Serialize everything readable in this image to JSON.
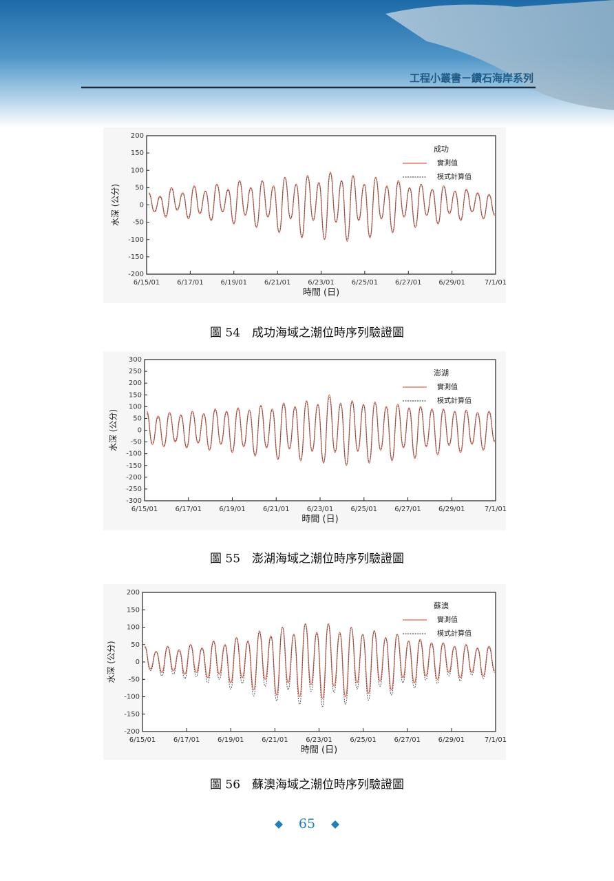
{
  "header": {
    "title": "工程小叢書－鑽石海岸系列"
  },
  "chart_data": [
    {
      "type": "line",
      "annotation": "成功",
      "x_label": "時間 (日)",
      "y_label": "水深 (公分)",
      "x": [
        0.1,
        0.36,
        0.62,
        0.88,
        1.14,
        1.4,
        1.66,
        1.92,
        2.18,
        2.44,
        2.7,
        2.96,
        3.22,
        3.48,
        3.74,
        4.0,
        4.26,
        4.52,
        4.78,
        5.04,
        5.3,
        5.56,
        5.82,
        6.08,
        6.34,
        6.6,
        6.86,
        7.12,
        7.38,
        7.64,
        7.9,
        8.16,
        8.42,
        8.68,
        8.94,
        9.2,
        9.46,
        9.72,
        9.98,
        10.24,
        10.5,
        10.76,
        11.02,
        11.28,
        11.54,
        11.8,
        12.06,
        12.32,
        12.58,
        12.84,
        13.1,
        13.36,
        13.62,
        13.88,
        14.14,
        14.4,
        14.66,
        14.92,
        15.18,
        15.44,
        15.7,
        15.96
      ],
      "series": [
        {
          "name": "實測值",
          "color": "#e8604c",
          "dash": false,
          "values": [
            35,
            -20,
            25,
            -35,
            50,
            -15,
            35,
            -40,
            55,
            -25,
            40,
            -45,
            60,
            -20,
            45,
            -55,
            70,
            -30,
            50,
            -65,
            70,
            -35,
            55,
            -80,
            80,
            -40,
            60,
            -95,
            85,
            -45,
            65,
            -100,
            95,
            -50,
            70,
            -105,
            85,
            -45,
            60,
            -95,
            80,
            -40,
            55,
            -80,
            70,
            -35,
            50,
            -65,
            60,
            -30,
            45,
            -55,
            55,
            -25,
            40,
            -45,
            45,
            -20,
            35,
            -40,
            30,
            -30
          ]
        },
        {
          "name": "模式計算值",
          "color": "#555555",
          "dash": true,
          "values": [
            32,
            -18,
            22,
            -30,
            46,
            -12,
            32,
            -36,
            52,
            -22,
            38,
            -42,
            58,
            -18,
            42,
            -52,
            68,
            -28,
            48,
            -62,
            68,
            -32,
            52,
            -78,
            78,
            -38,
            58,
            -92,
            82,
            -42,
            62,
            -98,
            92,
            -48,
            68,
            -100,
            82,
            -42,
            58,
            -92,
            78,
            -38,
            52,
            -76,
            66,
            -32,
            48,
            -62,
            58,
            -28,
            42,
            -52,
            52,
            -22,
            38,
            -42,
            42,
            -18,
            32,
            -38,
            28,
            -26
          ]
        }
      ],
      "xlim": [
        0,
        16
      ],
      "xticks": [
        {
          "value": 0,
          "label": "6/15/01"
        },
        {
          "value": 2,
          "label": "6/17/01"
        },
        {
          "value": 4,
          "label": "6/19/01"
        },
        {
          "value": 6,
          "label": "6/21/01"
        },
        {
          "value": 8,
          "label": "6/23/01"
        },
        {
          "value": 10,
          "label": "6/25/01"
        },
        {
          "value": 12,
          "label": "6/27/01"
        },
        {
          "value": 14,
          "label": "6/29/01"
        },
        {
          "value": 16,
          "label": "7/1/01"
        }
      ],
      "ylim": [
        -200,
        200
      ],
      "yticks": [
        -200,
        -150,
        -100,
        -50,
        0,
        50,
        100,
        150,
        200
      ]
    },
    {
      "type": "line",
      "annotation": "澎湖",
      "x_label": "時間 (日)",
      "y_label": "水深 (公分)",
      "x": [
        0.1,
        0.36,
        0.62,
        0.88,
        1.14,
        1.4,
        1.66,
        1.92,
        2.18,
        2.44,
        2.7,
        2.96,
        3.22,
        3.48,
        3.74,
        4.0,
        4.26,
        4.52,
        4.78,
        5.04,
        5.3,
        5.56,
        5.82,
        6.08,
        6.34,
        6.6,
        6.86,
        7.12,
        7.38,
        7.64,
        7.9,
        8.16,
        8.42,
        8.68,
        8.94,
        9.2,
        9.46,
        9.72,
        9.98,
        10.24,
        10.5,
        10.76,
        11.02,
        11.28,
        11.54,
        11.8,
        12.06,
        12.32,
        12.58,
        12.84,
        13.1,
        13.36,
        13.62,
        13.88,
        14.14,
        14.4,
        14.66,
        14.92,
        15.18,
        15.44,
        15.7,
        15.96
      ],
      "series": [
        {
          "name": "實測值",
          "color": "#e8604c",
          "dash": false,
          "values": [
            80,
            -60,
            60,
            -70,
            75,
            -50,
            65,
            -75,
            80,
            -55,
            70,
            -85,
            90,
            -60,
            80,
            -95,
            95,
            -70,
            85,
            -110,
            105,
            -75,
            90,
            -125,
            115,
            -80,
            100,
            -130,
            125,
            -90,
            110,
            -140,
            150,
            -95,
            115,
            -150,
            125,
            -90,
            110,
            -140,
            120,
            -85,
            100,
            -130,
            110,
            -75,
            95,
            -120,
            100,
            -70,
            90,
            -105,
            90,
            -65,
            80,
            -95,
            85,
            -60,
            75,
            -85,
            80,
            -50
          ]
        },
        {
          "name": "模式計算值",
          "color": "#555555",
          "dash": true,
          "values": [
            70,
            -55,
            55,
            -65,
            70,
            -45,
            60,
            -70,
            75,
            -50,
            65,
            -80,
            85,
            -55,
            75,
            -90,
            90,
            -65,
            80,
            -105,
            100,
            -70,
            85,
            -120,
            110,
            -75,
            95,
            -125,
            120,
            -85,
            105,
            -135,
            140,
            -90,
            110,
            -145,
            120,
            -85,
            105,
            -135,
            115,
            -80,
            95,
            -125,
            105,
            -70,
            90,
            -115,
            95,
            -65,
            85,
            -100,
            85,
            -60,
            75,
            -90,
            80,
            -55,
            70,
            -80,
            75,
            -45
          ]
        }
      ],
      "xlim": [
        0,
        16
      ],
      "xticks": [
        {
          "value": 0,
          "label": "6/15/01"
        },
        {
          "value": 2,
          "label": "6/17/01"
        },
        {
          "value": 4,
          "label": "6/19/01"
        },
        {
          "value": 6,
          "label": "6/21/01"
        },
        {
          "value": 8,
          "label": "6/23/01"
        },
        {
          "value": 10,
          "label": "6/25/01"
        },
        {
          "value": 12,
          "label": "6/27/01"
        },
        {
          "value": 14,
          "label": "6/29/01"
        },
        {
          "value": 16,
          "label": "7/1/01"
        }
      ],
      "ylim": [
        -300,
        300
      ],
      "yticks": [
        -300,
        -250,
        -200,
        -150,
        -100,
        -50,
        0,
        50,
        100,
        150,
        200,
        250,
        300
      ]
    },
    {
      "type": "line",
      "annotation": "蘇澳",
      "x_label": "時間 (日)",
      "y_label": "水深 (公分)",
      "x": [
        0.1,
        0.36,
        0.62,
        0.88,
        1.14,
        1.4,
        1.66,
        1.92,
        2.18,
        2.44,
        2.7,
        2.96,
        3.22,
        3.48,
        3.74,
        4.0,
        4.26,
        4.52,
        4.78,
        5.04,
        5.3,
        5.56,
        5.82,
        6.08,
        6.34,
        6.6,
        6.86,
        7.12,
        7.38,
        7.64,
        7.9,
        8.16,
        8.42,
        8.68,
        8.94,
        9.2,
        9.46,
        9.72,
        9.98,
        10.24,
        10.5,
        10.76,
        11.02,
        11.28,
        11.54,
        11.8,
        12.06,
        12.32,
        12.58,
        12.84,
        13.1,
        13.36,
        13.62,
        13.88,
        14.14,
        14.4,
        14.66,
        14.92,
        15.18,
        15.44,
        15.7,
        15.96
      ],
      "series": [
        {
          "name": "實測值",
          "color": "#e8604c",
          "dash": false,
          "values": [
            45,
            -20,
            30,
            -30,
            45,
            -25,
            35,
            -35,
            50,
            -30,
            40,
            -45,
            60,
            -35,
            50,
            -60,
            70,
            -45,
            60,
            -80,
            85,
            -50,
            75,
            -95,
            100,
            -60,
            80,
            -100,
            110,
            -65,
            85,
            -105,
            110,
            -70,
            85,
            -100,
            100,
            -60,
            80,
            -90,
            90,
            -55,
            70,
            -80,
            80,
            -45,
            60,
            -60,
            65,
            -40,
            55,
            -50,
            55,
            -30,
            45,
            -45,
            50,
            -30,
            40,
            -40,
            45,
            -25
          ]
        },
        {
          "name": "模式計算值",
          "color": "#555555",
          "dash": true,
          "values": [
            42,
            -25,
            28,
            -40,
            42,
            -35,
            32,
            -48,
            48,
            -42,
            38,
            -60,
            58,
            -50,
            48,
            -78,
            68,
            -62,
            58,
            -98,
            90,
            -70,
            72,
            -112,
            100,
            -80,
            78,
            -122,
            108,
            -85,
            82,
            -128,
            108,
            -88,
            82,
            -122,
            98,
            -78,
            78,
            -110,
            88,
            -70,
            68,
            -95,
            78,
            -60,
            58,
            -75,
            62,
            -52,
            52,
            -62,
            52,
            -40,
            42,
            -55,
            48,
            -38,
            38,
            -48,
            42,
            -30
          ]
        }
      ],
      "xlim": [
        0,
        16
      ],
      "xticks": [
        {
          "value": 0,
          "label": "6/15/01"
        },
        {
          "value": 2,
          "label": "6/17/01"
        },
        {
          "value": 4,
          "label": "6/19/01"
        },
        {
          "value": 6,
          "label": "6/21/01"
        },
        {
          "value": 8,
          "label": "6/23/01"
        },
        {
          "value": 10,
          "label": "6/25/01"
        },
        {
          "value": 12,
          "label": "6/27/01"
        },
        {
          "value": 14,
          "label": "6/29/01"
        },
        {
          "value": 16,
          "label": "7/1/01"
        }
      ],
      "ylim": [
        -200,
        200
      ],
      "yticks": [
        -200,
        -150,
        -100,
        -50,
        0,
        50,
        100,
        150,
        200
      ]
    }
  ],
  "captions": [
    "圖 54　成功海域之潮位時序列驗證圖",
    "圖 55　澎湖海域之潮位時序列驗證圖",
    "圖 56　蘇澳海域之潮位時序列驗證圖"
  ],
  "page_number": 65
}
